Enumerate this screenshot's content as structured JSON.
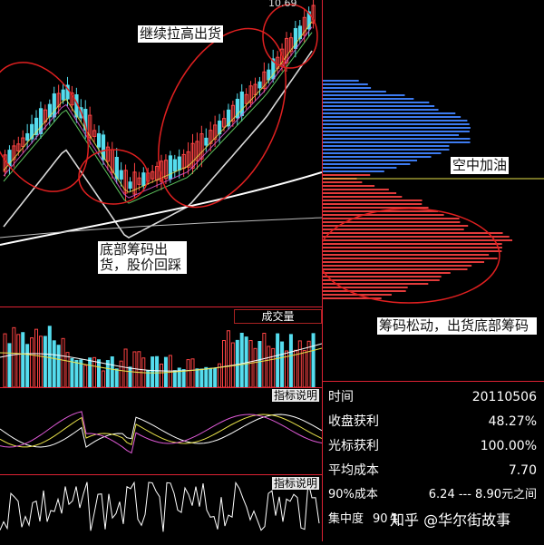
{
  "price_label": "10.69",
  "annotations": {
    "top": "继续拉高出货",
    "middle_left": "底部筹码出货，股价回踩",
    "right_mid": "空中加油",
    "right_lower": "筹码松动，出货底部筹码"
  },
  "panels": {
    "volume_label": "成交量",
    "indicator1_label": "指标说明",
    "indicator2_label": "指标说明"
  },
  "stats": {
    "rows": [
      {
        "key": "时间",
        "value": "20110506"
      },
      {
        "key": "收盘获利",
        "value": "48.27%"
      },
      {
        "key": "光标获利",
        "value": "100.00%"
      },
      {
        "key": "平均成本",
        "value": "7.70"
      },
      {
        "key": "90%成本",
        "value": "6.24 --- 8.90元之间"
      },
      {
        "key": "集中度",
        "value": "90 1"
      }
    ]
  },
  "watermark": "知乎 @华尔街故事",
  "colors": {
    "up": "#ff4444",
    "down": "#55ddee",
    "divider": "#cc2233",
    "blue_chip": "#3d7bf0",
    "red_chip": "#e23b3b"
  }
}
